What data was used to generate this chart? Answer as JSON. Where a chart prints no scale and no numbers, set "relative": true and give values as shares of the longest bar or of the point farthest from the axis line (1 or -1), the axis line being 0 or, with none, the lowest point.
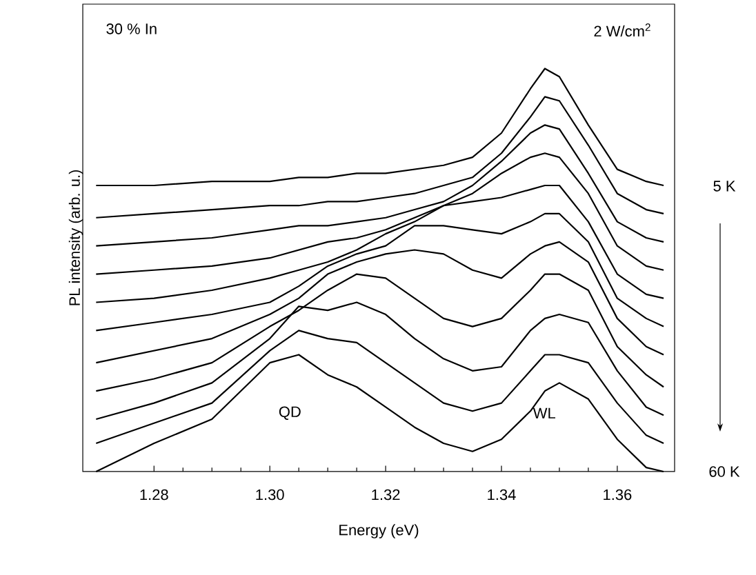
{
  "chart_data": {
    "type": "line",
    "relative": true,
    "xlabel": "Energy (eV)",
    "ylabel": "PL intensity (arb. u.)",
    "xlim": [
      1.2677,
      1.3699
    ],
    "xticks": [
      {
        "value": 1.28,
        "label": "1.28"
      },
      {
        "value": 1.3,
        "label": "1.30"
      },
      {
        "value": 1.32,
        "label": "1.32"
      },
      {
        "value": 1.34,
        "label": "1.34"
      },
      {
        "value": 1.36,
        "label": "1.36"
      }
    ],
    "x": [
      1.27,
      1.28,
      1.29,
      1.3,
      1.305,
      1.31,
      1.315,
      1.32,
      1.325,
      1.33,
      1.335,
      1.34,
      1.345,
      1.3475,
      1.35,
      1.355,
      1.36,
      1.365,
      1.368
    ],
    "marker": "none",
    "line_style": "solid",
    "grid": false,
    "series": [
      {
        "color": "#000000",
        "values": [
          0.71,
          0.71,
          0.72,
          0.72,
          0.73,
          0.73,
          0.74,
          0.74,
          0.75,
          0.76,
          0.78,
          0.84,
          0.95,
          1.0,
          0.98,
          0.86,
          0.75,
          0.72,
          0.71
        ]
      },
      {
        "color": "#000000",
        "values": [
          0.63,
          0.64,
          0.65,
          0.66,
          0.66,
          0.67,
          0.67,
          0.68,
          0.69,
          0.71,
          0.73,
          0.79,
          0.88,
          0.93,
          0.92,
          0.81,
          0.69,
          0.65,
          0.64
        ]
      },
      {
        "color": "#000000",
        "values": [
          0.56,
          0.57,
          0.58,
          0.6,
          0.61,
          0.61,
          0.62,
          0.63,
          0.65,
          0.67,
          0.71,
          0.77,
          0.84,
          0.86,
          0.85,
          0.74,
          0.62,
          0.58,
          0.57
        ]
      },
      {
        "color": "#000000",
        "values": [
          0.49,
          0.5,
          0.51,
          0.53,
          0.55,
          0.57,
          0.58,
          0.6,
          0.63,
          0.66,
          0.69,
          0.74,
          0.78,
          0.79,
          0.78,
          0.69,
          0.56,
          0.51,
          0.5
        ]
      },
      {
        "color": "#000000",
        "values": [
          0.42,
          0.43,
          0.45,
          0.48,
          0.5,
          0.52,
          0.55,
          0.59,
          0.62,
          0.66,
          0.67,
          0.68,
          0.7,
          0.71,
          0.71,
          0.62,
          0.49,
          0.44,
          0.43
        ]
      },
      {
        "color": "#000000",
        "values": [
          0.35,
          0.37,
          0.39,
          0.42,
          0.46,
          0.51,
          0.54,
          0.56,
          0.61,
          0.61,
          0.6,
          0.59,
          0.62,
          0.64,
          0.64,
          0.57,
          0.43,
          0.38,
          0.36
        ]
      },
      {
        "color": "#000000",
        "values": [
          0.27,
          0.3,
          0.33,
          0.39,
          0.43,
          0.49,
          0.52,
          0.54,
          0.55,
          0.54,
          0.5,
          0.48,
          0.54,
          0.56,
          0.57,
          0.52,
          0.38,
          0.31,
          0.29
        ]
      },
      {
        "color": "#000000",
        "values": [
          0.2,
          0.23,
          0.27,
          0.36,
          0.4,
          0.45,
          0.49,
          0.48,
          0.43,
          0.38,
          0.36,
          0.38,
          0.45,
          0.49,
          0.49,
          0.45,
          0.31,
          0.24,
          0.21
        ]
      },
      {
        "color": "#000000",
        "values": [
          0.13,
          0.17,
          0.22,
          0.33,
          0.41,
          0.4,
          0.42,
          0.39,
          0.33,
          0.28,
          0.25,
          0.26,
          0.35,
          0.38,
          0.39,
          0.37,
          0.25,
          0.16,
          0.14
        ]
      },
      {
        "color": "#000000",
        "values": [
          0.07,
          0.12,
          0.17,
          0.3,
          0.35,
          0.33,
          0.32,
          0.27,
          0.22,
          0.17,
          0.15,
          0.17,
          0.25,
          0.29,
          0.29,
          0.27,
          0.17,
          0.09,
          0.07
        ]
      },
      {
        "color": "#000000",
        "values": [
          0.0,
          0.07,
          0.13,
          0.27,
          0.29,
          0.24,
          0.21,
          0.16,
          0.11,
          0.07,
          0.05,
          0.08,
          0.15,
          0.2,
          0.22,
          0.18,
          0.08,
          0.01,
          0.0
        ]
      }
    ],
    "annotations": [
      "30 % In",
      "2 W/cm$^{2}$",
      "5 K",
      "60 K",
      "QD",
      "WL"
    ]
  }
}
